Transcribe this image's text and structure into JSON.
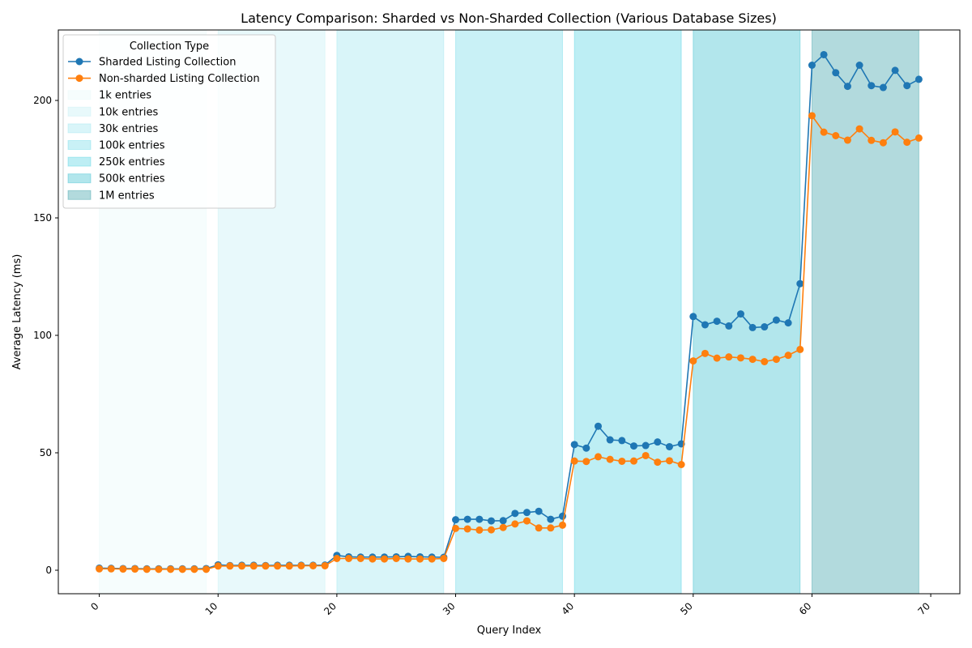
{
  "chart_data": {
    "type": "line",
    "title": "Latency Comparison: Sharded vs Non-Sharded Collection (Various Database Sizes)",
    "xlabel": "Query Index",
    "ylabel": "Average Latency (ms)",
    "xlim": [
      -3.45,
      72.45
    ],
    "ylim": [
      -10,
      230
    ],
    "xticks": [
      0,
      10,
      20,
      30,
      40,
      50,
      60,
      70
    ],
    "xtick_labels": [
      "0",
      "10",
      "20",
      "30",
      "40",
      "50",
      "60",
      "70"
    ],
    "xtick_rotation": 45,
    "yticks": [
      0,
      50,
      100,
      150,
      200
    ],
    "ytick_labels": [
      "0",
      "50",
      "100",
      "150",
      "200"
    ],
    "grid": false,
    "legend": {
      "title": "Collection Type",
      "placement": "upper left"
    },
    "bands": [
      {
        "label": "1k entries",
        "x_start": 0,
        "x_end": 9,
        "color": "#e0f7fa",
        "opacity": 0.3
      },
      {
        "label": "10k entries",
        "x_start": 10,
        "x_end": 19,
        "color": "#b2ebf2",
        "opacity": 0.3
      },
      {
        "label": "30k entries",
        "x_start": 20,
        "x_end": 29,
        "color": "#80deea",
        "opacity": 0.3
      },
      {
        "label": "100k entries",
        "x_start": 30,
        "x_end": 39,
        "color": "#4dd0e1",
        "opacity": 0.3
      },
      {
        "label": "250k entries",
        "x_start": 40,
        "x_end": 49,
        "color": "#26c6da",
        "opacity": 0.3
      },
      {
        "label": "500k entries",
        "x_start": 50,
        "x_end": 59,
        "color": "#00acc1",
        "opacity": 0.3
      },
      {
        "label": "1M entries",
        "x_start": 60,
        "x_end": 69,
        "color": "#00838f",
        "opacity": 0.3
      }
    ],
    "x": [
      0,
      1,
      2,
      3,
      4,
      5,
      6,
      7,
      8,
      9,
      10,
      11,
      12,
      13,
      14,
      15,
      16,
      17,
      18,
      19,
      20,
      21,
      22,
      23,
      24,
      25,
      26,
      27,
      28,
      29,
      30,
      31,
      32,
      33,
      34,
      35,
      36,
      37,
      38,
      39,
      40,
      41,
      42,
      43,
      44,
      45,
      46,
      47,
      48,
      49,
      50,
      51,
      52,
      53,
      54,
      55,
      56,
      57,
      58,
      59,
      60,
      61,
      62,
      63,
      64,
      65,
      66,
      67,
      68,
      69
    ],
    "series": [
      {
        "name": "Sharded Listing Collection",
        "color": "#1f77b4",
        "marker": "circle",
        "values": [
          0.9,
          0.8,
          0.7,
          0.7,
          0.6,
          0.6,
          0.6,
          0.6,
          0.6,
          0.7,
          2.3,
          2.0,
          2.1,
          2.1,
          2.0,
          2.1,
          2.1,
          2.1,
          2.1,
          2.2,
          6.3,
          5.7,
          5.6,
          5.6,
          5.6,
          5.7,
          5.9,
          5.7,
          5.6,
          5.5,
          21.5,
          21.7,
          21.7,
          21.0,
          21.1,
          24.2,
          24.6,
          25.1,
          21.7,
          23.0,
          53.5,
          52.0,
          61.3,
          55.5,
          55.2,
          52.9,
          53.1,
          54.6,
          52.6,
          53.8,
          108.0,
          104.5,
          106.0,
          104.0,
          109.1,
          103.3,
          103.6,
          106.5,
          105.3,
          122.0,
          215.0,
          219.5,
          211.8,
          206.0,
          215.0,
          206.3,
          205.5,
          212.8,
          206.3,
          209.0
        ]
      },
      {
        "name": "Non-sharded Listing Collection",
        "color": "#ff7f0e",
        "marker": "circle",
        "values": [
          0.6,
          0.6,
          0.5,
          0.5,
          0.4,
          0.4,
          0.4,
          0.4,
          0.4,
          0.4,
          1.8,
          1.8,
          1.8,
          1.8,
          1.8,
          1.8,
          1.8,
          1.9,
          1.9,
          1.9,
          5.0,
          5.0,
          5.0,
          4.8,
          4.8,
          5.0,
          4.8,
          4.8,
          4.8,
          5.0,
          17.8,
          17.6,
          17.1,
          17.2,
          18.2,
          19.7,
          21.0,
          18.0,
          18.0,
          19.2,
          46.5,
          46.3,
          48.3,
          47.2,
          46.4,
          46.5,
          48.8,
          46.0,
          46.6,
          45.0,
          89.1,
          92.3,
          90.3,
          90.8,
          90.4,
          89.8,
          88.8,
          89.8,
          91.5,
          94.0,
          193.5,
          186.5,
          185.0,
          183.1,
          187.9,
          183.0,
          182.0,
          186.6,
          182.2,
          184.0
        ]
      }
    ]
  }
}
